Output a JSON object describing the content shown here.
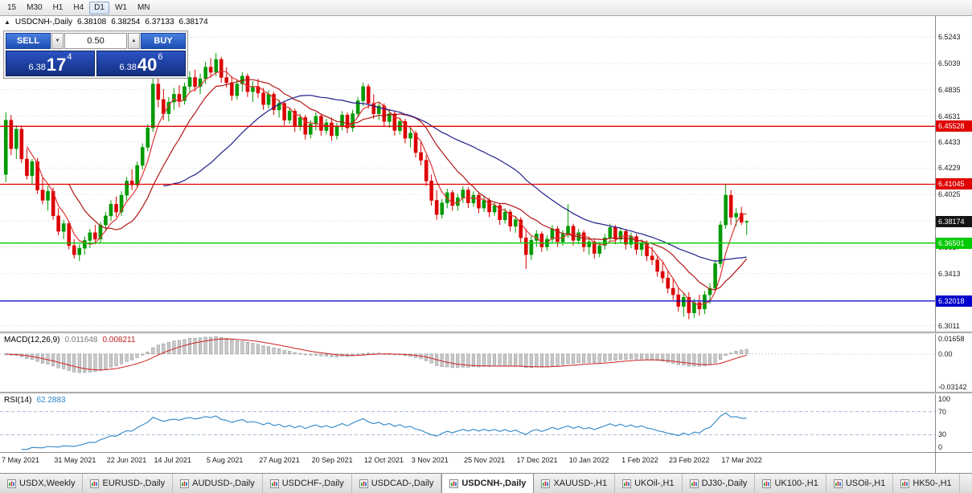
{
  "window": {
    "toolbar_timeframes": [
      "15",
      "M30",
      "H1",
      "H4",
      "D1",
      "W1",
      "MN"
    ],
    "active_timeframe": "D1"
  },
  "chart_header": {
    "symbol_title": "USDCNH-,Daily",
    "ohlc": {
      "open": "6.38108",
      "high": "6.38254",
      "low": "6.37133",
      "close": "6.38174"
    }
  },
  "trade_panel": {
    "sell_label": "SELL",
    "buy_label": "BUY",
    "volume": "0.50",
    "sell_price": {
      "prefix": "6.38",
      "big": "17",
      "sup": "4"
    },
    "buy_price": {
      "prefix": "6.38",
      "big": "40",
      "sup": "6"
    }
  },
  "price_axis": {
    "ticks": [
      "6.5243",
      "6.5039",
      "6.4835",
      "6.4631",
      "6.4433",
      "6.4229",
      "6.4025",
      "6.3821",
      "6.3617",
      "6.3413",
      "6.3209",
      "6.3011"
    ]
  },
  "levels": [
    {
      "label": "6.45528",
      "price": 6.45528,
      "color": "#e00000"
    },
    {
      "label": "6.41045",
      "price": 6.41045,
      "color": "#e00000"
    },
    {
      "label": "6.36501",
      "price": 6.36501,
      "color": "#00ca00"
    },
    {
      "label": "6.32018",
      "price": 6.32018,
      "color": "#0000cc"
    }
  ],
  "current_price": {
    "label": "6.38174",
    "value": 6.38174,
    "color": "#131313"
  },
  "chart_data": {
    "type": "candlestick",
    "symbol": "USDCNH",
    "timeframe": "Daily",
    "ylim": [
      6.2965,
      6.5405
    ],
    "colors": {
      "up": "#009a00",
      "down": "#dd0000",
      "grid": "#d2d2d2"
    },
    "moving_averages": [
      {
        "period": 5,
        "color": "#e03434"
      },
      {
        "period": 13,
        "color": "#b01616"
      },
      {
        "period": 31,
        "color": "#20208c"
      }
    ],
    "x_labels": [
      "7 May 2021",
      "31 May 2021",
      "22 Jun 2021",
      "14 Jul 2021",
      "5 Aug 2021",
      "27 Aug 2021",
      "20 Sep 2021",
      "12 Oct 2021",
      "3 Nov 2021",
      "25 Nov 2021",
      "17 Dec 2021",
      "10 Jan 2022",
      "1 Feb 2022",
      "23 Feb 2022",
      "17 Mar 2022"
    ],
    "x_label_indices": [
      0,
      10,
      20,
      29,
      39,
      49,
      59,
      69,
      78,
      88,
      98,
      108,
      118,
      127,
      137
    ],
    "candles": [
      [
        6.418,
        6.466,
        6.412,
        6.46
      ],
      [
        6.46,
        6.464,
        6.433,
        6.438
      ],
      [
        6.438,
        6.456,
        6.43,
        6.453
      ],
      [
        6.453,
        6.456,
        6.427,
        6.43
      ],
      [
        6.43,
        6.438,
        6.414,
        6.417
      ],
      [
        6.417,
        6.43,
        6.41,
        6.428
      ],
      [
        6.428,
        6.431,
        6.403,
        6.406
      ],
      [
        6.406,
        6.416,
        6.395,
        6.398
      ],
      [
        6.398,
        6.409,
        6.39,
        6.405
      ],
      [
        6.405,
        6.408,
        6.383,
        6.386
      ],
      [
        6.386,
        6.392,
        6.371,
        6.374
      ],
      [
        6.374,
        6.383,
        6.368,
        6.38
      ],
      [
        6.38,
        6.382,
        6.36,
        6.363
      ],
      [
        6.363,
        6.368,
        6.353,
        6.356
      ],
      [
        6.356,
        6.364,
        6.351,
        6.361
      ],
      [
        6.361,
        6.37,
        6.356,
        6.367
      ],
      [
        6.367,
        6.376,
        6.361,
        6.373
      ],
      [
        6.373,
        6.379,
        6.364,
        6.368
      ],
      [
        6.368,
        6.381,
        6.365,
        6.379
      ],
      [
        6.379,
        6.389,
        6.374,
        6.386
      ],
      [
        6.386,
        6.398,
        6.382,
        6.395
      ],
      [
        6.395,
        6.401,
        6.385,
        6.389
      ],
      [
        6.389,
        6.405,
        6.386,
        6.402
      ],
      [
        6.402,
        6.416,
        6.398,
        6.413
      ],
      [
        6.413,
        6.422,
        6.406,
        6.41
      ],
      [
        6.41,
        6.428,
        6.408,
        6.425
      ],
      [
        6.425,
        6.442,
        6.422,
        6.439
      ],
      [
        6.439,
        6.457,
        6.436,
        6.454
      ],
      [
        6.454,
        6.492,
        6.451,
        6.488
      ],
      [
        6.488,
        6.495,
        6.47,
        6.476
      ],
      [
        6.476,
        6.484,
        6.46,
        6.465
      ],
      [
        6.465,
        6.478,
        6.459,
        6.474
      ],
      [
        6.474,
        6.485,
        6.468,
        6.48
      ],
      [
        6.48,
        6.487,
        6.47,
        6.475
      ],
      [
        6.475,
        6.489,
        6.472,
        6.486
      ],
      [
        6.486,
        6.498,
        6.481,
        6.493
      ],
      [
        6.493,
        6.499,
        6.482,
        6.486
      ],
      [
        6.486,
        6.496,
        6.48,
        6.492
      ],
      [
        6.492,
        6.505,
        6.488,
        6.501
      ],
      [
        6.501,
        6.508,
        6.493,
        6.497
      ],
      [
        6.497,
        6.512,
        6.494,
        6.507
      ],
      [
        6.507,
        6.509,
        6.489,
        6.493
      ],
      [
        6.493,
        6.501,
        6.485,
        6.489
      ],
      [
        6.489,
        6.494,
        6.475,
        6.479
      ],
      [
        6.479,
        6.491,
        6.476,
        6.488
      ],
      [
        6.488,
        6.497,
        6.482,
        6.494
      ],
      [
        6.494,
        6.496,
        6.478,
        6.482
      ],
      [
        6.482,
        6.49,
        6.474,
        6.486
      ],
      [
        6.486,
        6.492,
        6.477,
        6.481
      ],
      [
        6.481,
        6.485,
        6.468,
        6.472
      ],
      [
        6.472,
        6.483,
        6.469,
        6.48
      ],
      [
        6.48,
        6.482,
        6.464,
        6.468
      ],
      [
        6.468,
        6.476,
        6.462,
        6.473
      ],
      [
        6.473,
        6.475,
        6.456,
        6.46
      ],
      [
        6.46,
        6.47,
        6.457,
        6.467
      ],
      [
        6.467,
        6.469,
        6.451,
        6.455
      ],
      [
        6.455,
        6.465,
        6.452,
        6.462
      ],
      [
        6.462,
        6.464,
        6.445,
        6.449
      ],
      [
        6.449,
        6.46,
        6.446,
        6.457
      ],
      [
        6.457,
        6.466,
        6.452,
        6.463
      ],
      [
        6.463,
        6.465,
        6.448,
        6.452
      ],
      [
        6.452,
        6.461,
        6.449,
        6.458
      ],
      [
        6.458,
        6.462,
        6.444,
        6.448
      ],
      [
        6.448,
        6.458,
        6.445,
        6.455
      ],
      [
        6.455,
        6.467,
        6.452,
        6.464
      ],
      [
        6.464,
        6.466,
        6.45,
        6.454
      ],
      [
        6.454,
        6.468,
        6.451,
        6.465
      ],
      [
        6.465,
        6.478,
        6.462,
        6.475
      ],
      [
        6.475,
        6.489,
        6.471,
        6.486
      ],
      [
        6.486,
        6.488,
        6.469,
        6.473
      ],
      [
        6.473,
        6.48,
        6.461,
        6.465
      ],
      [
        6.465,
        6.474,
        6.46,
        6.471
      ],
      [
        6.471,
        6.473,
        6.455,
        6.459
      ],
      [
        6.459,
        6.468,
        6.454,
        6.465
      ],
      [
        6.465,
        6.467,
        6.448,
        6.452
      ],
      [
        6.452,
        6.462,
        6.449,
        6.459
      ],
      [
        6.459,
        6.461,
        6.442,
        6.446
      ],
      [
        6.446,
        6.454,
        6.439,
        6.45
      ],
      [
        6.45,
        6.452,
        6.431,
        6.435
      ],
      [
        6.435,
        6.443,
        6.425,
        6.429
      ],
      [
        6.429,
        6.433,
        6.409,
        6.413
      ],
      [
        6.413,
        6.418,
        6.394,
        6.398
      ],
      [
        6.398,
        6.406,
        6.383,
        6.387
      ],
      [
        6.387,
        6.399,
        6.384,
        6.396
      ],
      [
        6.396,
        6.407,
        6.392,
        6.404
      ],
      [
        6.404,
        6.406,
        6.39,
        6.394
      ],
      [
        6.394,
        6.403,
        6.39,
        6.4
      ],
      [
        6.4,
        6.409,
        6.396,
        6.406
      ],
      [
        6.406,
        6.408,
        6.392,
        6.396
      ],
      [
        6.396,
        6.405,
        6.393,
        6.402
      ],
      [
        6.402,
        6.404,
        6.388,
        6.392
      ],
      [
        6.392,
        6.401,
        6.389,
        6.398
      ],
      [
        6.398,
        6.4,
        6.385,
        6.389
      ],
      [
        6.389,
        6.397,
        6.386,
        6.394
      ],
      [
        6.394,
        6.396,
        6.379,
        6.383
      ],
      [
        6.383,
        6.392,
        6.38,
        6.389
      ],
      [
        6.389,
        6.391,
        6.374,
        6.378
      ],
      [
        6.378,
        6.386,
        6.373,
        6.383
      ],
      [
        6.383,
        6.385,
        6.365,
        6.369
      ],
      [
        6.369,
        6.376,
        6.345,
        6.356
      ],
      [
        6.356,
        6.37,
        6.352,
        6.367
      ],
      [
        6.367,
        6.375,
        6.362,
        6.372
      ],
      [
        6.372,
        6.374,
        6.358,
        6.362
      ],
      [
        6.362,
        6.371,
        6.359,
        6.368
      ],
      [
        6.368,
        6.379,
        6.365,
        6.376
      ],
      [
        6.376,
        6.378,
        6.362,
        6.366
      ],
      [
        6.366,
        6.375,
        6.363,
        6.372
      ],
      [
        6.372,
        6.395,
        6.369,
        6.378
      ],
      [
        6.378,
        6.38,
        6.363,
        6.367
      ],
      [
        6.367,
        6.376,
        6.364,
        6.373
      ],
      [
        6.373,
        6.375,
        6.358,
        6.362
      ],
      [
        6.362,
        6.37,
        6.356,
        6.366
      ],
      [
        6.366,
        6.368,
        6.353,
        6.357
      ],
      [
        6.357,
        6.366,
        6.354,
        6.363
      ],
      [
        6.363,
        6.372,
        6.36,
        6.369
      ],
      [
        6.369,
        6.38,
        6.366,
        6.377
      ],
      [
        6.377,
        6.379,
        6.364,
        6.368
      ],
      [
        6.368,
        6.377,
        6.365,
        6.374
      ],
      [
        6.374,
        6.376,
        6.36,
        6.364
      ],
      [
        6.364,
        6.373,
        6.361,
        6.37
      ],
      [
        6.37,
        6.372,
        6.356,
        6.36
      ],
      [
        6.36,
        6.368,
        6.355,
        6.365
      ],
      [
        6.365,
        6.367,
        6.351,
        6.355
      ],
      [
        6.355,
        6.362,
        6.348,
        6.352
      ],
      [
        6.352,
        6.356,
        6.339,
        6.343
      ],
      [
        6.343,
        6.35,
        6.334,
        6.338
      ],
      [
        6.338,
        6.344,
        6.326,
        6.33
      ],
      [
        6.33,
        6.338,
        6.321,
        6.325
      ],
      [
        6.325,
        6.331,
        6.312,
        6.316
      ],
      [
        6.316,
        6.326,
        6.308,
        6.323
      ],
      [
        6.323,
        6.327,
        6.306,
        6.311
      ],
      [
        6.311,
        6.322,
        6.307,
        6.319
      ],
      [
        6.319,
        6.325,
        6.309,
        6.314
      ],
      [
        6.314,
        6.328,
        6.31,
        6.325
      ],
      [
        6.325,
        6.334,
        6.318,
        6.33
      ],
      [
        6.33,
        6.352,
        6.327,
        6.349
      ],
      [
        6.349,
        6.382,
        6.346,
        6.379
      ],
      [
        6.379,
        6.41,
        6.376,
        6.402
      ],
      [
        6.402,
        6.406,
        6.379,
        6.385
      ],
      [
        6.385,
        6.392,
        6.378,
        6.388
      ],
      [
        6.388,
        6.393,
        6.379,
        6.3811
      ],
      [
        6.38108,
        6.38254,
        6.37133,
        6.38174
      ]
    ]
  },
  "macd_panel": {
    "label": "MACD(12,26,9)",
    "value_main": "0.011648",
    "value_signal": "0.008211",
    "axis": [
      "0.01658",
      "0.00",
      "-0.03142"
    ],
    "ylim": [
      -0.03142,
      0.01658
    ],
    "params": {
      "fast": 12,
      "slow": 26,
      "signal": 9
    },
    "colors": {
      "histogram": "#c9c9c9",
      "histogram_border": "#8e8e8e",
      "signal": "#d02020",
      "zero_line": "#b8b8b8"
    }
  },
  "rsi_panel": {
    "label": "RSI(14)",
    "value": "62.2883",
    "period": 14,
    "axis": [
      "100",
      "70",
      "30",
      "0"
    ],
    "levels": [
      70,
      30
    ],
    "ylim": [
      0,
      100
    ],
    "colors": {
      "line": "#2e86c8",
      "level_lines": "#a0b8d8"
    }
  },
  "tabs": {
    "active": "USDCNH-,Daily",
    "items": [
      {
        "label": "USDX,Weekly"
      },
      {
        "label": "EURUSD-,Daily"
      },
      {
        "label": "AUDUSD-,Daily"
      },
      {
        "label": "USDCHF-,Daily"
      },
      {
        "label": "USDCAD-,Daily"
      },
      {
        "label": "USDCNH-,Daily"
      },
      {
        "label": "XAUUSD-,H1"
      },
      {
        "label": "UKOil-,H1"
      },
      {
        "label": "DJ30-,Daily"
      },
      {
        "label": "UK100-,H1"
      },
      {
        "label": "USOil-,H1"
      },
      {
        "label": "HK50-,H1"
      }
    ]
  }
}
